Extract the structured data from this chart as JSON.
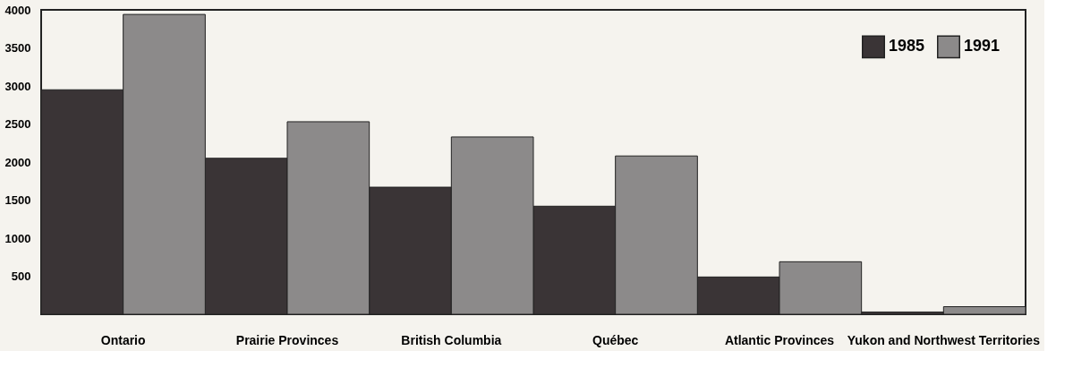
{
  "chart_data": {
    "type": "bar",
    "categories": [
      "Ontario",
      "Prairie Provinces",
      "British Columbia",
      "Québec",
      "Atlantic Provinces",
      "Yukon and Northwest Territories"
    ],
    "series": [
      {
        "name": "1985",
        "color": "#3a3436",
        "values": [
          2950,
          2050,
          1670,
          1420,
          490,
          30
        ]
      },
      {
        "name": "1991",
        "color": "#8c8a8a",
        "values": [
          3940,
          2530,
          2330,
          2080,
          690,
          100
        ]
      }
    ],
    "ylim": [
      0,
      4000
    ],
    "yticks": [
      500,
      1000,
      1500,
      2000,
      2500,
      3000,
      3500,
      4000
    ],
    "grid": false,
    "legend": "top right"
  }
}
